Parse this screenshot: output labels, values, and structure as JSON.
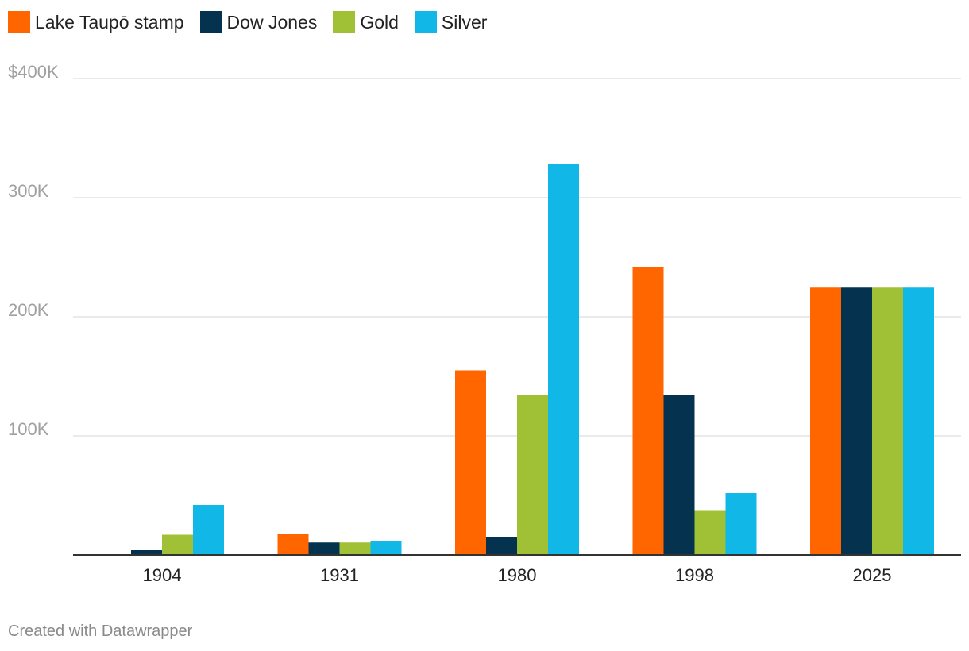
{
  "chart_data": {
    "type": "bar",
    "categories": [
      "1904",
      "1931",
      "1980",
      "1998",
      "2025"
    ],
    "series": [
      {
        "name": "Lake Taupō stamp",
        "color": "#ff6600",
        "values": [
          0,
          17500,
          155000,
          242000,
          224500
        ]
      },
      {
        "name": "Dow Jones",
        "color": "#05334f",
        "values": [
          4000,
          10500,
          15000,
          134000,
          224500
        ]
      },
      {
        "name": "Gold",
        "color": "#a0c136",
        "values": [
          17000,
          10500,
          134000,
          37000,
          224500
        ]
      },
      {
        "name": "Silver",
        "color": "#11b7e7",
        "values": [
          42000,
          11500,
          328000,
          52000,
          224500
        ]
      }
    ],
    "ylim": [
      0,
      400000
    ],
    "y_ticks": [
      {
        "value": 100000,
        "label": "100K"
      },
      {
        "value": 200000,
        "label": "200K"
      },
      {
        "value": 300000,
        "label": "300K"
      },
      {
        "value": 400000,
        "label": "$400K"
      }
    ],
    "grid": true,
    "legend_position": "top-left"
  },
  "footer": {
    "credit": "Created with Datawrapper"
  }
}
